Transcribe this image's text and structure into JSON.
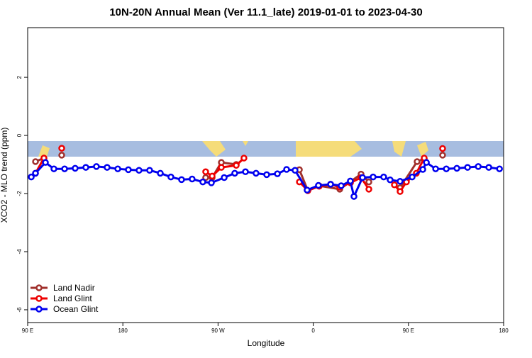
{
  "chart_data": {
    "type": "line",
    "title": "10N-20N Annual Mean (Ver 11.1_late)   2019-01-01 to 2023-04-30",
    "x_label": "Longitude",
    "y_label": "XCO2 - MLO trend (ppm)",
    "xlim": [
      90,
      540
    ],
    "ylim": [
      -6.44,
      3.71
    ],
    "xticks": [
      {
        "value": 90,
        "label": "90 E"
      },
      180,
      {
        "value": 270,
        "label": "90 W"
      },
      {
        "value": 360,
        "label": "0"
      },
      {
        "value": 450,
        "label": "90 E"
      },
      {
        "value": 540,
        "label": "180"
      }
    ],
    "yticks": [
      -6,
      -4,
      -2,
      0,
      2
    ],
    "legend": "bottom-left",
    "series": [
      {
        "name": "Land Nadir",
        "color": "#a0302c",
        "x": [
          97.4,
          105.4,
          null,
          122.2,
          null,
          258.3,
          264.4,
          273.1,
          287.2,
          null,
          346.9,
          354.9,
          365.6,
          385.1,
          405.2,
          412.6,
          null,
          442.1,
          458.2,
          464.9,
          null,
          482.3
        ],
        "values": [
          -0.9,
          -0.78,
          null,
          -0.68,
          null,
          -1.45,
          -1.45,
          -0.93,
          -1.0,
          null,
          -1.18,
          -1.9,
          -1.73,
          -1.85,
          -1.33,
          -1.6,
          null,
          -1.8,
          -0.9,
          -0.8,
          null,
          -0.68
        ]
      },
      {
        "name": "Land Glint",
        "color": "#ee0000",
        "x": [
          97.4,
          105.4,
          null,
          122.2,
          null,
          258.3,
          264.4,
          273.1,
          287.2,
          294.5,
          null,
          346.9,
          354.9,
          365.6,
          376.4,
          385.1,
          395.2,
          405.2,
          412.6,
          null,
          436.7,
          442.1,
          448.1,
          457.5,
          464.9,
          null,
          482.3
        ],
        "values": [
          -1.3,
          -0.78,
          null,
          -0.44,
          null,
          -1.25,
          -1.4,
          -1.1,
          -1.03,
          -0.78,
          null,
          -1.6,
          -1.9,
          -1.75,
          -1.68,
          -1.78,
          -1.63,
          -1.45,
          -1.85,
          null,
          -1.7,
          -1.93,
          -1.6,
          -1.3,
          -0.78,
          null,
          -0.45
        ]
      },
      {
        "name": "Ocean Glint",
        "color": "#0000ee",
        "x": [
          93.4,
          97.4,
          106.8,
          114.8,
          124.9,
          134.9,
          145,
          155,
          165.1,
          175.2,
          185.2,
          195.3,
          205.3,
          215.4,
          225.4,
          235.5,
          245.5,
          255.6,
          263.7,
          275.8,
          285.8,
          295.9,
          305.9,
          316,
          326.1,
          334.8,
          342.8,
          354.2,
          364.9,
          376.4,
          386.4,
          395.1,
          398.5,
          406.6,
          416.6,
          426.6,
          432.7,
          442.1,
          453.5,
          463.6,
          467,
          475.7,
          485.8,
          495.8,
          505.9,
          516,
          526,
          536.1
        ],
        "values": [
          -1.43,
          -1.3,
          -0.93,
          -1.15,
          -1.15,
          -1.13,
          -1.1,
          -1.07,
          -1.1,
          -1.15,
          -1.18,
          -1.2,
          -1.2,
          -1.3,
          -1.43,
          -1.52,
          -1.5,
          -1.6,
          -1.63,
          -1.45,
          -1.3,
          -1.25,
          -1.3,
          -1.35,
          -1.32,
          -1.17,
          -1.2,
          -1.88,
          -1.72,
          -1.68,
          -1.73,
          -1.57,
          -2.1,
          -1.45,
          -1.43,
          -1.43,
          -1.53,
          -1.58,
          -1.43,
          -1.17,
          -0.93,
          -1.15,
          -1.15,
          -1.13,
          -1.1,
          -1.07,
          -1.1,
          -1.15
        ]
      }
    ]
  }
}
